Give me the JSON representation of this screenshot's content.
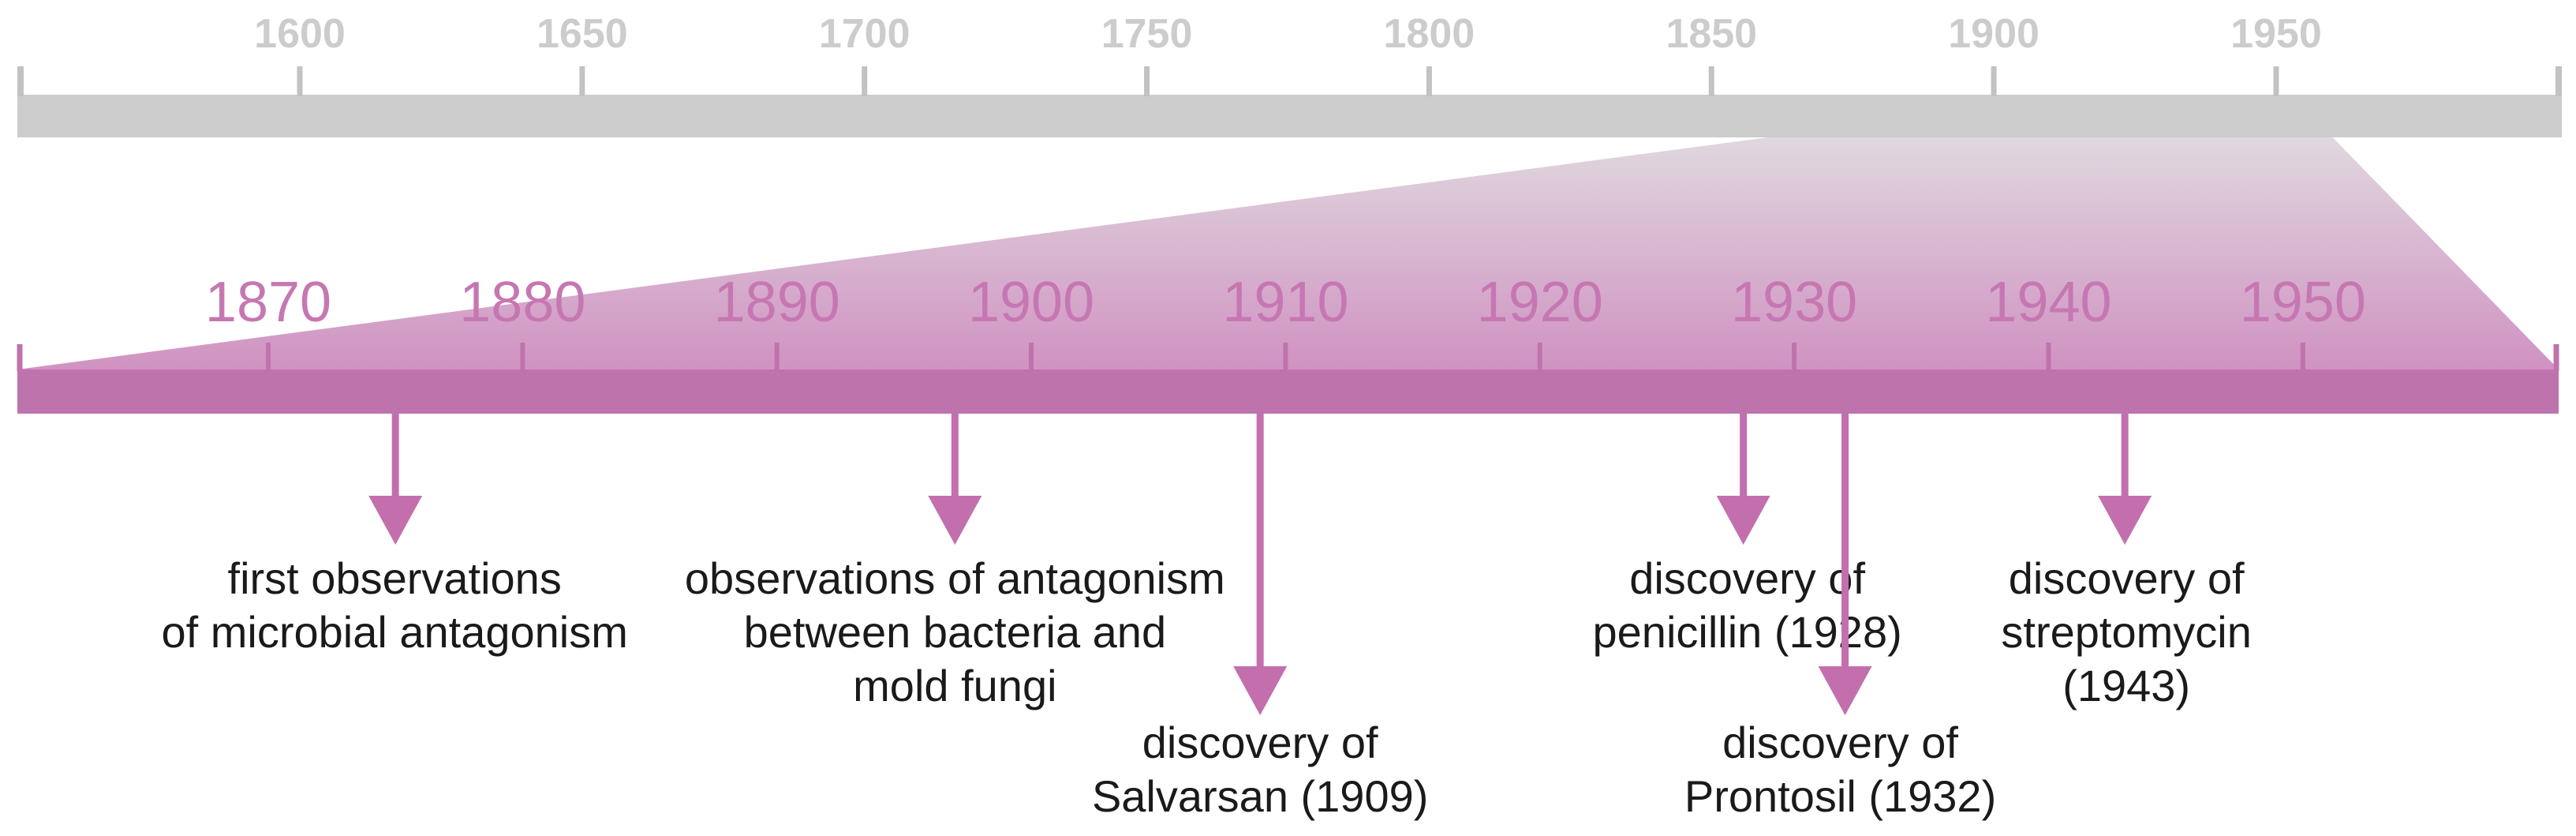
{
  "colors": {
    "overview_bar": "#cccccc",
    "overview_tick": "#c2c2c2",
    "overview_label": "#cccccc",
    "zoom_bar": "#bf73ad",
    "zoom_label": "#c677b2",
    "arrow": "#c36fae",
    "gradient_top": "#e0d8de",
    "gradient_bottom": "#d092c2",
    "text": "#1a1a1a"
  },
  "overview_axis": {
    "range": [
      1550,
      2000
    ],
    "ticks": [
      "1600",
      "1650",
      "1700",
      "1750",
      "1800",
      "1850",
      "1900",
      "1950"
    ],
    "zoom_window": [
      1860,
      1960
    ]
  },
  "zoom_axis": {
    "range": [
      1860,
      1960
    ],
    "ticks": [
      "1870",
      "1880",
      "1890",
      "1900",
      "1910",
      "1920",
      "1930",
      "1940",
      "1950"
    ]
  },
  "events": [
    {
      "id": "antagonism",
      "year": 1875,
      "lines": [
        "first observations",
        "of microbial antagonism"
      ]
    },
    {
      "id": "mold",
      "year": 1897,
      "lines": [
        "observations of antagonism",
        "between bacteria and",
        "mold fungi"
      ]
    },
    {
      "id": "salvarsan",
      "year": 1909,
      "lines": [
        "discovery of",
        "Salvarsan (1909)"
      ]
    },
    {
      "id": "penicillin",
      "year": 1928,
      "lines": [
        "discovery of",
        "penicillin (1928)"
      ]
    },
    {
      "id": "prontosil",
      "year": 1932,
      "lines": [
        "discovery of",
        "Prontosil (1932)"
      ]
    },
    {
      "id": "streptomycin",
      "year": 1943,
      "lines": [
        "discovery of",
        "streptomycin",
        "(1943)"
      ]
    }
  ]
}
